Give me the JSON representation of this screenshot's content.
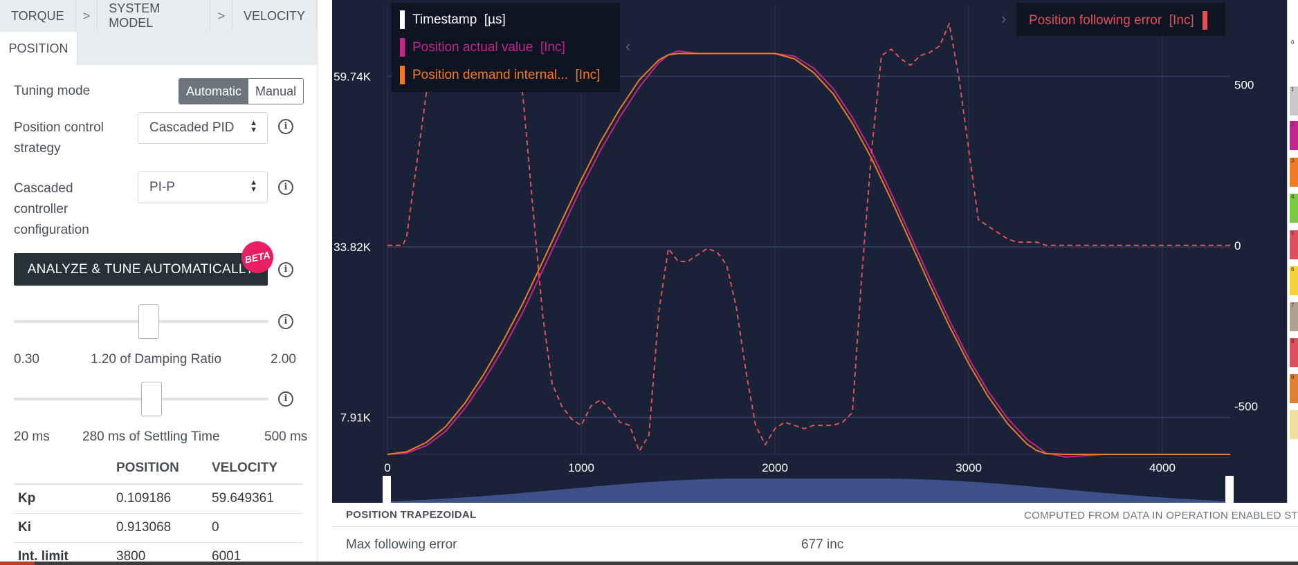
{
  "breadcrumb": {
    "items": [
      "TORQUE",
      "SYSTEM MODEL",
      "VELOCITY"
    ],
    "separator": ">",
    "active_tab": "POSITION"
  },
  "tuning": {
    "mode_label": "Tuning mode",
    "mode_options": [
      "Automatic",
      "Manual"
    ],
    "mode_selected": "Automatic",
    "strategy_label": "Position control strategy",
    "strategy_value": "Cascaded PID",
    "config_label": "Cascaded controller configuration",
    "config_value": "PI-P",
    "analyze_button": "ANALYZE & TUNE AUTOMATICALLY",
    "beta_badge": "BETA",
    "info_icon": "i"
  },
  "damping": {
    "min": "0.30",
    "max": "2.00",
    "label": "1.20 of Damping Ratio",
    "value": 1.2
  },
  "settling": {
    "min": "20 ms",
    "max": "500 ms",
    "label": "280 ms of Settling Time",
    "value": 280
  },
  "gains_table": {
    "headers": [
      "",
      "POSITION",
      "VELOCITY"
    ],
    "rows": [
      [
        "Kp",
        "0.109186",
        "59.649361"
      ],
      [
        "Ki",
        "0.913068",
        "0"
      ],
      [
        "Int. limit",
        "3800",
        "6001"
      ]
    ]
  },
  "chart_data": {
    "type": "line",
    "x_ticks": [
      "0",
      "1000",
      "2000",
      "3000",
      "4000"
    ],
    "xlim": [
      0,
      4350
    ],
    "y_left_ticks": [
      "59.74K",
      "33.82K",
      "7.91K"
    ],
    "y_left_tick_values": [
      59740,
      33820,
      7910
    ],
    "ylim_left": [
      2300,
      70700
    ],
    "y_right_ticks": [
      "500",
      "0",
      "-500"
    ],
    "y_right_tick_values": [
      500,
      0,
      -500
    ],
    "ylim_right": [
      -650,
      750
    ],
    "grid": true,
    "legend": [
      {
        "name": "Timestamp",
        "unit": "[µs]",
        "color": "#ffffff"
      },
      {
        "name": "Position actual value",
        "unit": "[Inc]",
        "color": "#c2258c"
      },
      {
        "name": "Position demand internal...",
        "unit": "[Inc]",
        "color": "#f07b24"
      }
    ],
    "legend_right": [
      {
        "name": "Position following error",
        "unit": "[Inc]",
        "color": "#e0505a"
      }
    ],
    "legend_arrow_left": "‹",
    "legend_arrow_right": "›",
    "series": [
      {
        "name": "Position actual value",
        "axis": "left",
        "color": "#c2258c",
        "x": [
          0,
          100,
          200,
          300,
          400,
          500,
          600,
          700,
          800,
          900,
          1000,
          1100,
          1200,
          1300,
          1400,
          1450,
          1500,
          1550,
          1600,
          1700,
          1800,
          1900,
          2000,
          2100,
          2200,
          2300,
          2400,
          2500,
          2600,
          2700,
          2800,
          2900,
          3000,
          3100,
          3200,
          3300,
          3400,
          3500,
          3600,
          3700,
          3800,
          3900,
          4000,
          4100,
          4200,
          4350
        ],
        "y": [
          2300,
          2500,
          3600,
          5800,
          9300,
          13600,
          18500,
          24000,
          30200,
          36500,
          42800,
          48500,
          53600,
          58100,
          61800,
          63000,
          63600,
          63400,
          63200,
          63200,
          63200,
          63200,
          63200,
          62800,
          61000,
          57900,
          53500,
          48200,
          42000,
          35500,
          29000,
          22700,
          16900,
          11900,
          7800,
          4600,
          2500,
          1900,
          2100,
          2300,
          2300,
          2300,
          2300,
          2300,
          2300,
          2300
        ]
      },
      {
        "name": "Position demand internal...",
        "axis": "left",
        "color": "#f07b24",
        "x": [
          0,
          100,
          200,
          300,
          400,
          500,
          600,
          700,
          800,
          900,
          1000,
          1100,
          1200,
          1300,
          1400,
          1450,
          1500,
          1600,
          1700,
          1800,
          1900,
          2000,
          2100,
          2200,
          2300,
          2400,
          2500,
          2600,
          2700,
          2800,
          2900,
          3000,
          3100,
          3200,
          3300,
          3350,
          3400,
          3500,
          3600,
          3700,
          3800,
          3900,
          4000,
          4100,
          4200,
          4350
        ],
        "y": [
          2300,
          2700,
          4100,
          6500,
          10100,
          14600,
          19700,
          25300,
          31500,
          37800,
          44000,
          49800,
          54800,
          59200,
          62200,
          63000,
          63200,
          63200,
          63200,
          63200,
          63200,
          63200,
          62400,
          60300,
          57100,
          52600,
          47200,
          41000,
          34500,
          28000,
          21800,
          16100,
          11100,
          7000,
          3900,
          2900,
          2400,
          2300,
          2300,
          2300,
          2300,
          2300,
          2300,
          2300,
          2300,
          2300
        ]
      },
      {
        "name": "Position following error",
        "axis": "right",
        "color": "#e0505a",
        "dashed": true,
        "x": [
          0,
          80,
          100,
          150,
          200,
          250,
          300,
          350,
          400,
          450,
          500,
          550,
          600,
          650,
          700,
          750,
          800,
          850,
          900,
          950,
          1000,
          1050,
          1100,
          1150,
          1200,
          1250,
          1300,
          1350,
          1400,
          1450,
          1500,
          1550,
          1600,
          1650,
          1700,
          1750,
          1800,
          1850,
          1900,
          1950,
          2000,
          2050,
          2100,
          2150,
          2200,
          2250,
          2300,
          2350,
          2400,
          2450,
          2500,
          2550,
          2600,
          2650,
          2700,
          2750,
          2800,
          2850,
          2900,
          2950,
          3000,
          3050,
          3100,
          3150,
          3200,
          3250,
          3300,
          3350,
          3400,
          3450,
          3500,
          3550,
          3600,
          3650,
          3700,
          3750,
          3800,
          3900,
          4000,
          4100,
          4200,
          4350
        ],
        "y": [
          0,
          0,
          30,
          250,
          470,
          610,
          650,
          670,
          650,
          640,
          610,
          640,
          690,
          650,
          460,
          120,
          -210,
          -430,
          -500,
          -540,
          -560,
          -500,
          -480,
          -510,
          -550,
          -560,
          -640,
          -590,
          -210,
          -10,
          -50,
          -50,
          -30,
          -10,
          -20,
          -60,
          -190,
          -390,
          -560,
          -620,
          -570,
          -550,
          -560,
          -570,
          -560,
          -560,
          -560,
          -550,
          -520,
          -80,
          300,
          590,
          610,
          580,
          560,
          590,
          600,
          620,
          690,
          520,
          300,
          80,
          60,
          40,
          20,
          10,
          10,
          10,
          0,
          0,
          0,
          0,
          0,
          0,
          0,
          0,
          0,
          0,
          0,
          0,
          0,
          0
        ]
      }
    ]
  },
  "scroll": {
    "navigator_color": "#3d5088"
  },
  "bottom": {
    "title": "POSITION TRAPEZOIDAL",
    "note": "COMPUTED FROM DATA IN OPERATION ENABLED ST",
    "metric_label": "Max following error",
    "metric_value": "677 inc"
  },
  "strip": {
    "items": [
      "0",
      "1",
      "2",
      "3",
      "4",
      "5",
      "6",
      "7",
      "8",
      "9"
    ],
    "colors": [
      "#ffffff",
      "#c8c8c8",
      "#c2258c",
      "#f07b24",
      "#7ac943",
      "#e0505a",
      "#f5d33a",
      "#b0a090",
      "#e0505a",
      "#e08030",
      "#f0e0a0"
    ]
  }
}
